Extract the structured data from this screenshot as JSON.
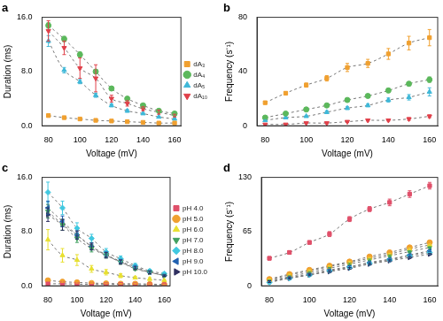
{
  "chart_data": [
    {
      "type": "scatter",
      "title": "a",
      "x_label": "Voltage (mV)",
      "y_label": "Duration (ms)",
      "x": [
        80,
        90,
        100,
        110,
        120,
        130,
        140,
        150,
        160
      ],
      "xlim": [
        76,
        164
      ],
      "xticks": [
        80,
        100,
        120,
        140,
        160
      ],
      "ylim": [
        0,
        16
      ],
      "yticks": [
        {
          "value": 0,
          "label": "0.0"
        },
        {
          "value": 8,
          "label": "8.0"
        },
        {
          "value": 16,
          "label": "16.0"
        }
      ],
      "grid": false,
      "legend": "right",
      "series": [
        {
          "name": "dA₃",
          "color": "#f0a030",
          "marker": "square",
          "line_style": "dashed",
          "values": [
            1.5,
            1.2,
            1.0,
            0.8,
            0.7,
            0.6,
            0.5,
            0.4,
            0.4
          ],
          "errors": [
            0.2,
            0.1,
            0.1,
            0.1,
            0.1,
            0.1,
            0.1,
            0.1,
            0.1
          ]
        },
        {
          "name": "dA₄",
          "color": "#5cb85c",
          "marker": "circle",
          "line_style": "dashed",
          "values": [
            14.8,
            12.8,
            10.5,
            8.0,
            5.5,
            4.0,
            3.0,
            2.2,
            1.8
          ],
          "errors": [
            0.4,
            0.4,
            0.4,
            0.3,
            0.3,
            0.2,
            0.2,
            0.2,
            0.1
          ]
        },
        {
          "name": "dA₅",
          "color": "#3fb8d8",
          "marker": "triangle",
          "line_style": "dashed",
          "values": [
            12.5,
            8.2,
            6.5,
            4.5,
            3.0,
            2.2,
            1.8,
            1.3,
            1.0
          ],
          "errors": [
            0.8,
            0.4,
            0.3,
            0.3,
            0.2,
            0.2,
            0.1,
            0.1,
            0.1
          ]
        },
        {
          "name": "dA₁₀",
          "color": "#e0404a",
          "marker": "triangle_down",
          "line_style": "dashed",
          "values": [
            14.0,
            11.5,
            8.5,
            7.0,
            4.0,
            3.3,
            2.5,
            2.0,
            1.5
          ],
          "errors": [
            1.5,
            1.0,
            1.5,
            2.0,
            0.5,
            0.4,
            0.3,
            0.3,
            0.2
          ]
        }
      ]
    },
    {
      "type": "scatter",
      "title": "b",
      "x_label": "Voltage (mV)",
      "y_label": "Frequency (s⁻¹)",
      "x": [
        80,
        90,
        100,
        110,
        120,
        130,
        140,
        150,
        160
      ],
      "xlim": [
        76,
        164
      ],
      "xticks": [
        80,
        100,
        120,
        140,
        160
      ],
      "ylim": [
        0,
        80
      ],
      "yticks": [
        0,
        40,
        80
      ],
      "grid": false,
      "series": [
        {
          "name": "dA₃",
          "color": "#f0a030",
          "marker": "square",
          "line_style": "dashed",
          "values": [
            17,
            24,
            30,
            35,
            43,
            46,
            53,
            61,
            65
          ],
          "errors": [
            1,
            1,
            1.5,
            2,
            3,
            3,
            4,
            5,
            6
          ]
        },
        {
          "name": "dA₄",
          "color": "#5cb85c",
          "marker": "circle",
          "line_style": "dashed",
          "values": [
            6,
            9,
            12,
            15,
            19,
            22,
            26,
            31,
            34
          ],
          "errors": [
            0.5,
            0.5,
            1,
            1,
            1,
            1,
            1.5,
            1.5,
            2
          ]
        },
        {
          "name": "dA₅",
          "color": "#3fb8d8",
          "marker": "triangle",
          "line_style": "dashed",
          "values": [
            4,
            6,
            7,
            10,
            13,
            15,
            19,
            21,
            25
          ],
          "errors": [
            0.5,
            0.5,
            0.5,
            1,
            1,
            1,
            1.5,
            2,
            3
          ]
        },
        {
          "name": "dA₁₀",
          "color": "#e0404a",
          "marker": "triangle_down",
          "line_style": "dashed",
          "values": [
            1,
            1,
            2,
            2,
            3,
            4,
            4,
            5,
            7
          ],
          "errors": [
            0.3,
            0.3,
            0.3,
            0.5,
            0.5,
            0.5,
            0.5,
            1,
            1
          ]
        }
      ]
    },
    {
      "type": "scatter",
      "title": "c",
      "x_label": "Voltage (mV)",
      "y_label": "Duration (ms)",
      "x": [
        80,
        90,
        100,
        110,
        120,
        130,
        140,
        150,
        160
      ],
      "xlim": [
        76,
        164
      ],
      "xticks": [
        80,
        100,
        120,
        140,
        160
      ],
      "ylim": [
        0,
        16
      ],
      "yticks": [
        {
          "value": 0,
          "label": "0.0"
        },
        {
          "value": 8,
          "label": "8.0"
        },
        {
          "value": 16,
          "label": "16.0"
        }
      ],
      "grid": false,
      "legend": "right",
      "series": [
        {
          "name": "pH 4.0",
          "color": "#e0506a",
          "marker": "square",
          "line_style": "dashed",
          "values": [
            0.3,
            0.3,
            0.25,
            0.2,
            0.2,
            0.2,
            0.15,
            0.15,
            0.15
          ],
          "errors": [
            0.05,
            0.05,
            0.05,
            0.05,
            0.05,
            0.05,
            0.05,
            0.05,
            0.05
          ]
        },
        {
          "name": "pH 5.0",
          "color": "#f0a030",
          "marker": "circle",
          "line_style": "dashed",
          "values": [
            0.8,
            0.6,
            0.5,
            0.4,
            0.35,
            0.3,
            0.3,
            0.25,
            0.2
          ],
          "errors": [
            0.1,
            0.1,
            0.1,
            0.05,
            0.05,
            0.05,
            0.05,
            0.05,
            0.05
          ]
        },
        {
          "name": "pH 6.0",
          "color": "#e8e030",
          "marker": "triangle",
          "line_style": "dashed",
          "values": [
            6.8,
            4.5,
            3.8,
            2.5,
            2.0,
            1.5,
            1.2,
            1.0,
            0.8
          ],
          "errors": [
            1.5,
            1.0,
            0.8,
            0.5,
            0.4,
            0.3,
            0.2,
            0.2,
            0.1
          ]
        },
        {
          "name": "pH 7.0",
          "color": "#40a060",
          "marker": "triangle_down",
          "line_style": "dashed",
          "values": [
            11.0,
            9.0,
            7.0,
            5.5,
            4.5,
            3.5,
            2.5,
            2.0,
            1.5
          ],
          "errors": [
            1.0,
            0.8,
            0.6,
            0.5,
            0.4,
            0.3,
            0.2,
            0.2,
            0.1
          ]
        },
        {
          "name": "pH 8.0",
          "color": "#40c8e0",
          "marker": "diamond",
          "line_style": "dashed",
          "values": [
            13.8,
            11.5,
            8.5,
            7.0,
            5.0,
            4.0,
            3.0,
            2.2,
            1.8
          ],
          "errors": [
            1.5,
            1.0,
            0.8,
            0.6,
            0.5,
            0.4,
            0.3,
            0.2,
            0.2
          ]
        },
        {
          "name": "pH 9.0",
          "color": "#2060b0",
          "marker": "triangle_left",
          "line_style": "dashed",
          "values": [
            11.5,
            9.5,
            7.5,
            5.8,
            4.6,
            3.6,
            2.8,
            2.0,
            1.6
          ],
          "errors": [
            1.0,
            0.8,
            0.6,
            0.5,
            0.4,
            0.3,
            0.2,
            0.2,
            0.1
          ]
        },
        {
          "name": "pH 10.0",
          "color": "#303060",
          "marker": "triangle_right",
          "line_style": "dashed",
          "values": [
            10.5,
            9.0,
            7.5,
            5.8,
            4.5,
            3.5,
            2.6,
            2.0,
            1.5
          ],
          "errors": [
            1.0,
            0.8,
            0.6,
            0.5,
            0.4,
            0.3,
            0.2,
            0.2,
            0.1
          ]
        }
      ]
    },
    {
      "type": "scatter",
      "title": "d",
      "x_label": "Voltage (mV)",
      "y_label": "Frequency (s⁻¹)",
      "x": [
        80,
        90,
        100,
        110,
        120,
        130,
        140,
        150,
        160
      ],
      "xlim": [
        76,
        164
      ],
      "xticks": [
        80,
        100,
        120,
        140,
        160
      ],
      "ylim": [
        0,
        130
      ],
      "yticks": [
        0,
        65,
        130
      ],
      "grid": false,
      "series": [
        {
          "name": "pH 4.0",
          "color": "#e0506a",
          "marker": "square",
          "line_style": "dashed",
          "values": [
            33,
            40,
            52,
            62,
            80,
            92,
            100,
            110,
            120
          ],
          "errors": [
            2,
            2,
            2,
            3,
            3,
            3,
            4,
            4,
            4
          ]
        },
        {
          "name": "pH 5.0",
          "color": "#f0a030",
          "marker": "circle",
          "line_style": "dashed",
          "values": [
            8,
            14,
            19,
            24,
            29,
            35,
            40,
            46,
            52
          ],
          "errors": [
            1,
            1,
            1,
            1,
            1,
            1,
            1,
            1,
            1
          ]
        },
        {
          "name": "pH 6.0",
          "color": "#e8e030",
          "marker": "triangle",
          "line_style": "dashed",
          "values": [
            7,
            13,
            18,
            23,
            28,
            33,
            38,
            44,
            49
          ],
          "errors": [
            1,
            1,
            1,
            1,
            1,
            1,
            1,
            1,
            1
          ]
        },
        {
          "name": "pH 7.0",
          "color": "#40a060",
          "marker": "triangle_down",
          "line_style": "dashed",
          "values": [
            6,
            11,
            16,
            21,
            26,
            31,
            36,
            41,
            46
          ],
          "errors": [
            1,
            1,
            1,
            1,
            1,
            1,
            1,
            1,
            1
          ]
        },
        {
          "name": "pH 8.0",
          "color": "#40c8e0",
          "marker": "diamond",
          "line_style": "dashed",
          "values": [
            4,
            9,
            13,
            18,
            22,
            27,
            31,
            36,
            40
          ],
          "errors": [
            1,
            1,
            1,
            1,
            1,
            1,
            1,
            1,
            1
          ]
        },
        {
          "name": "pH 9.0",
          "color": "#2060b0",
          "marker": "triangle_left",
          "line_style": "dashed",
          "values": [
            5,
            10,
            14,
            19,
            23,
            28,
            32,
            37,
            42
          ],
          "errors": [
            1,
            1,
            1,
            1,
            1,
            1,
            1,
            1,
            1
          ]
        },
        {
          "name": "pH 10.0",
          "color": "#303060",
          "marker": "triangle_right",
          "line_style": "dashed",
          "values": [
            5,
            9,
            13,
            17,
            21,
            26,
            30,
            34,
            38
          ],
          "errors": [
            1,
            1,
            1,
            1,
            1,
            1,
            1,
            1,
            1
          ]
        }
      ]
    }
  ]
}
